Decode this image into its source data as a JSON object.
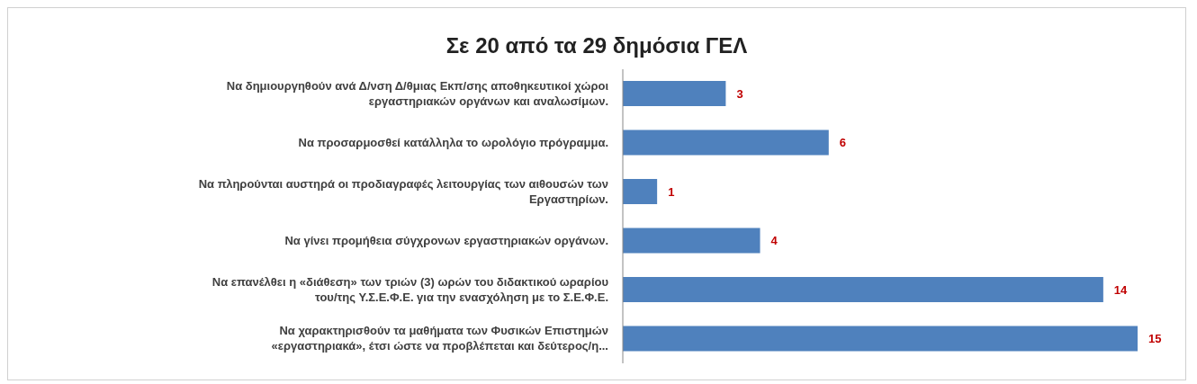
{
  "chart_data": {
    "type": "bar",
    "orientation": "horizontal",
    "title": "Σε 20 από τα 29 δημόσια ΓΕΛ",
    "categories": [
      "Να δημιουργηθούν ανά Δ/νση Δ/θμιας Εκπ/σης αποθηκευτικοί χώροι\nεργαστηριακών οργάνων και αναλωσίμων.",
      "Να προσαρμοσθεί κατάλληλα το ωρολόγιο πρόγραμμα.",
      "Να πληρούνται αυστηρά οι προδιαγραφές λειτουργίας των αιθουσών των\nΕργαστηρίων.",
      "Να γίνει προμήθεια σύγχρονων εργαστηριακών οργάνων.",
      "Να επανέλθει η «διάθεση» των τριών (3) ωρών του διδακτικού ωραρίου\nτου/της Υ.Σ.Ε.Φ.Ε. για την ενασχόληση με το Σ.Ε.Φ.Ε.",
      "Να χαρακτηρισθούν τα μαθήματα των Φυσικών Επιστημών\n«εργαστηριακά», έτσι ώστε να προβλέπεται και δεύτερος/η..."
    ],
    "values": [
      3,
      6,
      1,
      4,
      14,
      15
    ],
    "color": "#4f81bd",
    "data_labels": true,
    "grid": false,
    "legend": false
  }
}
